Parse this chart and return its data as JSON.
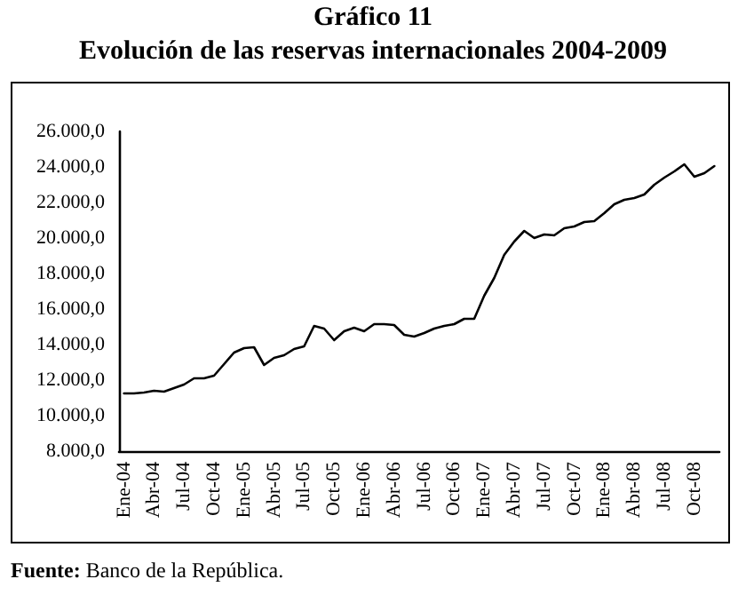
{
  "chart_data": {
    "type": "line",
    "title": "Gráfico 11",
    "subtitle": "Evolución de las reservas internacionales 2004-2009",
    "categories": [
      "Ene-04",
      null,
      null,
      "Abr-04",
      null,
      null,
      "Jul-04",
      null,
      null,
      "Oct-04",
      null,
      null,
      "Ene-05",
      null,
      null,
      "Abr-05",
      null,
      null,
      "Jul-05",
      null,
      null,
      "Oct-05",
      null,
      null,
      "Ene-06",
      null,
      null,
      "Abr-06",
      null,
      null,
      "Jul-06",
      null,
      null,
      "Oct-06",
      null,
      null,
      "Ene-07",
      null,
      null,
      "Abr-07",
      null,
      null,
      "Jul-07",
      null,
      null,
      "Oct-07",
      null,
      null,
      "Ene-08",
      null,
      null,
      "Abr-08",
      null,
      null,
      "Jul-08",
      null,
      null,
      "Oct-08",
      null,
      null
    ],
    "series": [
      {
        "color": "#000000",
        "values": [
          11250,
          11250,
          11300,
          11400,
          11350,
          11550,
          11750,
          12100,
          12100,
          12250,
          12900,
          13550,
          13800,
          13850,
          12850,
          13250,
          13400,
          13750,
          13900,
          15050,
          14900,
          14250,
          14750,
          14950,
          14750,
          15150,
          15150,
          15100,
          14550,
          14450,
          14650,
          14900,
          15050,
          15150,
          15450,
          15450,
          16750,
          17750,
          19050,
          19800,
          20400,
          20000,
          20200,
          20150,
          20550,
          20650,
          20900,
          20950,
          21400,
          21900,
          22150,
          22250,
          22450,
          23000,
          23400,
          23750,
          24150,
          23450,
          23650,
          24050
        ]
      }
    ],
    "ylim": [
      8000,
      26000
    ],
    "yticks": [
      {
        "value": 8000,
        "label": "8.000,0"
      },
      {
        "value": 10000,
        "label": "10.000,0"
      },
      {
        "value": 12000,
        "label": "12.000,0"
      },
      {
        "value": 14000,
        "label": "14.000,0"
      },
      {
        "value": 16000,
        "label": "16.000,0"
      },
      {
        "value": 18000,
        "label": "18.000,0"
      },
      {
        "value": 20000,
        "label": "20.000,0"
      },
      {
        "value": 22000,
        "label": "22.000,0"
      },
      {
        "value": 24000,
        "label": "24.000,0"
      },
      {
        "value": 26000,
        "label": "26.000,0"
      }
    ],
    "grid": false,
    "marker": "none",
    "line_style": "solid",
    "annotations": [
      "Fuente: Banco de la República."
    ]
  }
}
